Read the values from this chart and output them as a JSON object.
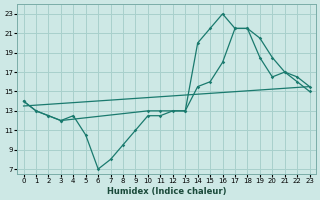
{
  "xlabel": "Humidex (Indice chaleur)",
  "background_color": "#cde8e5",
  "grid_color": "#a8d0cc",
  "line_color": "#1a7a6e",
  "xlim": [
    -0.5,
    23.5
  ],
  "ylim": [
    6.5,
    24
  ],
  "xticks": [
    0,
    1,
    2,
    3,
    4,
    5,
    6,
    7,
    8,
    9,
    10,
    11,
    12,
    13,
    14,
    15,
    16,
    17,
    18,
    19,
    20,
    21,
    22,
    23
  ],
  "yticks": [
    7,
    9,
    11,
    13,
    15,
    17,
    19,
    21,
    23
  ],
  "line1_x": [
    0,
    1,
    2,
    3,
    4,
    5,
    6,
    7,
    8,
    9,
    10,
    11,
    12,
    13,
    14,
    15,
    16,
    17,
    18,
    19,
    20,
    21,
    22,
    23
  ],
  "line1_y": [
    14,
    13,
    12.5,
    12,
    12.5,
    10.5,
    7,
    8,
    9.5,
    11,
    12.5,
    12.5,
    13,
    13,
    15.5,
    16,
    18,
    21.5,
    21.5,
    18.5,
    16.5,
    17,
    16,
    15
  ],
  "line2_x": [
    0,
    1,
    2,
    3,
    10,
    11,
    13,
    14,
    15,
    16,
    17,
    18,
    19,
    20,
    21,
    22,
    23
  ],
  "line2_y": [
    14,
    13,
    12.5,
    12,
    13,
    13,
    13,
    20,
    21.5,
    23,
    21.5,
    21.5,
    20.5,
    18.5,
    17,
    16.5,
    15.5
  ],
  "line3_x": [
    0,
    23
  ],
  "line3_y": [
    13.5,
    15.5
  ]
}
